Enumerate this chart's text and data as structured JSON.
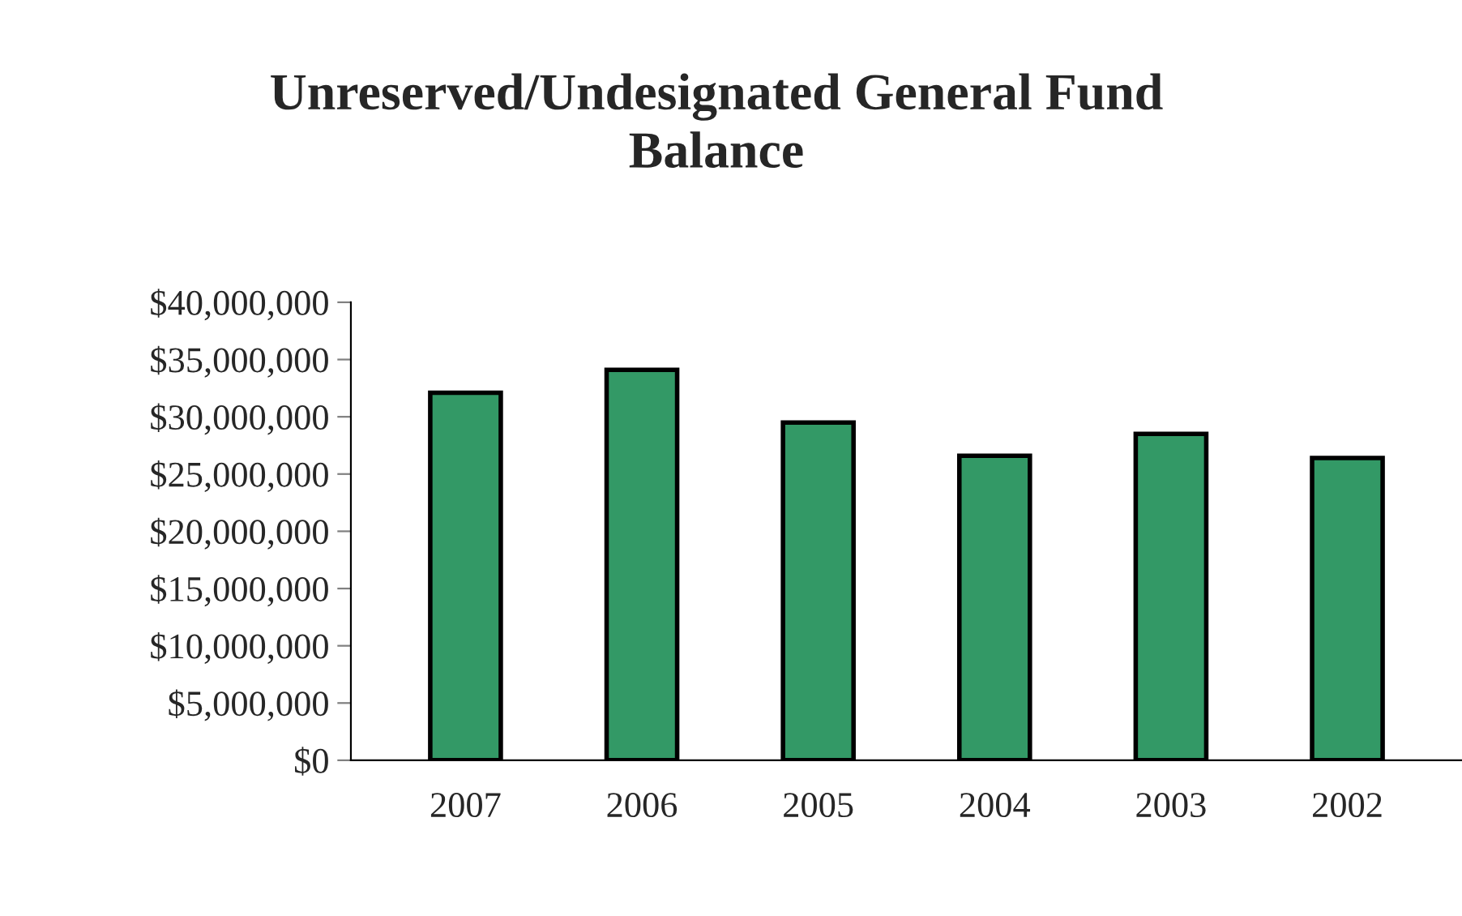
{
  "chart_data": {
    "type": "bar",
    "title": "Unreserved/Undesignated General Fund\nBalance",
    "categories": [
      "2007",
      "2006",
      "2005",
      "2004",
      "2003",
      "2002"
    ],
    "values": [
      32100000,
      34100000,
      29500000,
      26600000,
      28500000,
      26400000
    ],
    "color": "#339966",
    "ylim": [
      0,
      40000000
    ],
    "yticks": [
      {
        "value": 0,
        "label": "$0"
      },
      {
        "value": 5000000,
        "label": "$5,000,000"
      },
      {
        "value": 10000000,
        "label": "$10,000,000"
      },
      {
        "value": 15000000,
        "label": "$15,000,000"
      },
      {
        "value": 20000000,
        "label": "$20,000,000"
      },
      {
        "value": 25000000,
        "label": "$25,000,000"
      },
      {
        "value": 30000000,
        "label": "$30,000,000"
      },
      {
        "value": 35000000,
        "label": "$35,000,000"
      },
      {
        "value": 40000000,
        "label": "$40,000,000"
      }
    ],
    "grid": false,
    "legend": false
  }
}
